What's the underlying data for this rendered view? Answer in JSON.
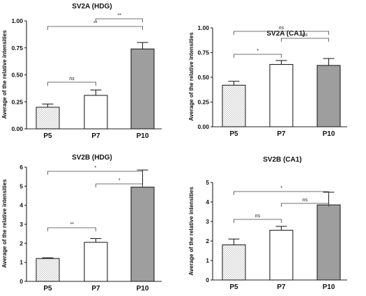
{
  "chart_data": [
    {
      "type": "bar",
      "title": "SV2A (HDG)",
      "ylabel": "Average of the relative intensities",
      "categories": [
        "P5",
        "P7",
        "P10"
      ],
      "values": [
        0.2,
        0.31,
        0.74
      ],
      "errors": [
        0.03,
        0.05,
        0.06
      ],
      "ylim": [
        0,
        1.0
      ],
      "yticks": [
        "0.00",
        "0.25",
        "0.50",
        "0.75",
        "1.00"
      ],
      "bar_fills": [
        "dotted",
        "white",
        "#9e9e9e"
      ],
      "significance": [
        {
          "from": "P5",
          "to": "P7",
          "label": "ns"
        },
        {
          "from": "P5",
          "to": "P10",
          "label": "**"
        },
        {
          "from": "P7",
          "to": "P10",
          "label": "**"
        }
      ]
    },
    {
      "type": "bar",
      "title": "SV2A (CA1)",
      "ylabel": "Average of the relative intensities",
      "categories": [
        "P5",
        "P7",
        "P10"
      ],
      "values": [
        0.42,
        0.63,
        0.62
      ],
      "errors": [
        0.04,
        0.04,
        0.07
      ],
      "ylim": [
        0,
        1.0
      ],
      "yticks": [
        "0.00",
        "0.25",
        "0.50",
        "0.75",
        "1.00"
      ],
      "bar_fills": [
        "dotted",
        "white",
        "#9e9e9e"
      ],
      "significance": [
        {
          "from": "P5",
          "to": "P7",
          "label": "*"
        },
        {
          "from": "P5",
          "to": "P10",
          "label": "ns"
        },
        {
          "from": "P7",
          "to": "P10",
          "label": "ns"
        }
      ]
    },
    {
      "type": "bar",
      "title": "SV2B (HDG)",
      "ylabel": "Average of the relative intensities",
      "categories": [
        "P5",
        "P7",
        "P10"
      ],
      "values": [
        1.2,
        2.05,
        4.95
      ],
      "errors": [
        0.04,
        0.2,
        0.9
      ],
      "ylim": [
        0,
        6
      ],
      "yticks": [
        "0",
        "1",
        "2",
        "3",
        "4",
        "5",
        "6"
      ],
      "bar_fills": [
        "dotted",
        "white",
        "#9e9e9e"
      ],
      "significance": [
        {
          "from": "P5",
          "to": "P7",
          "label": "**"
        },
        {
          "from": "P5",
          "to": "P10",
          "label": "*"
        },
        {
          "from": "P7",
          "to": "P10",
          "label": "*"
        }
      ]
    },
    {
      "type": "bar",
      "title": "SV2B (CA1)",
      "ylabel": "Average of the relative intensities",
      "categories": [
        "P5",
        "P7",
        "P10"
      ],
      "values": [
        1.8,
        2.55,
        3.85
      ],
      "errors": [
        0.3,
        0.2,
        0.65
      ],
      "ylim": [
        0,
        5
      ],
      "yticks": [
        "0",
        "1",
        "2",
        "3",
        "4",
        "5"
      ],
      "bar_fills": [
        "dotted",
        "white",
        "#9e9e9e"
      ],
      "significance": [
        {
          "from": "P5",
          "to": "P7",
          "label": "ns"
        },
        {
          "from": "P5",
          "to": "P10",
          "label": "*"
        },
        {
          "from": "P7",
          "to": "P10",
          "label": "ns"
        }
      ]
    }
  ]
}
